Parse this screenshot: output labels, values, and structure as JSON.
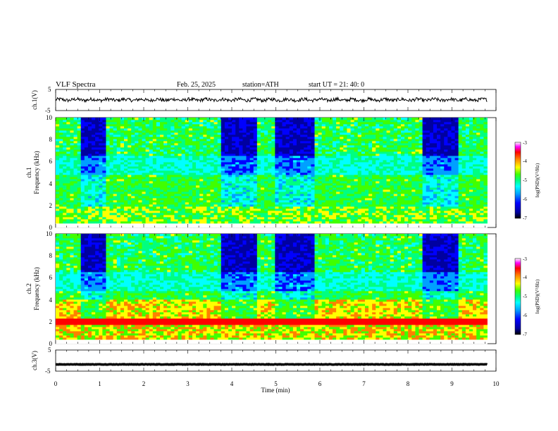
{
  "header": {
    "title": "VLF  Spectra",
    "date": "Feb. 25, 2025",
    "station": "station=ATH",
    "start": "start  UT  =    21: 40: 0"
  },
  "chart_data": [
    {
      "type": "line",
      "name": "ch1-waveform",
      "ylabel": "ch.1(V)",
      "xlim": [
        0,
        9.8
      ],
      "ylim": [
        -5,
        5
      ],
      "yticks": [
        "5",
        "-5"
      ],
      "approx_level": 0.1
    },
    {
      "type": "heatmap",
      "name": "ch1-spectrogram",
      "ylabel": "ch.1\nFrequency  (kHz)",
      "ylim": [
        0,
        10
      ],
      "yticks": [
        "10",
        "8",
        "6",
        "4",
        "2",
        "0"
      ],
      "colorbar": {
        "label": "log(PSD)(V²/Hz)",
        "range": [
          -7,
          -3
        ],
        "ticks": [
          "-3",
          "-4",
          "-5",
          "-6",
          "-7"
        ]
      },
      "quiet_intervals_min": [
        [
          0.55,
          1.15
        ],
        [
          3.75,
          4.55
        ],
        [
          4.95,
          5.85
        ],
        [
          8.35,
          9.15
        ]
      ]
    },
    {
      "type": "heatmap",
      "name": "ch2-spectrogram",
      "ylabel": "ch.2\nFrequency  (kHz)",
      "ylim": [
        0,
        10
      ],
      "yticks": [
        "10",
        "8",
        "6",
        "4",
        "2",
        "0"
      ],
      "colorbar": {
        "label": "log(PSD)(V²/Hz)",
        "range": [
          -7,
          -3
        ],
        "ticks": [
          "-3",
          "-4",
          "-5",
          "-6",
          "-7"
        ]
      },
      "quiet_intervals_min": [
        [
          0.55,
          1.15
        ],
        [
          3.75,
          4.55
        ],
        [
          4.95,
          5.85
        ],
        [
          8.35,
          9.15
        ]
      ]
    },
    {
      "type": "line",
      "name": "ch3-waveform",
      "ylabel": "ch.3(V)",
      "xlim": [
        0,
        9.8
      ],
      "ylim": [
        -5,
        5
      ],
      "yticks": [
        "5",
        "-5"
      ],
      "approx_level": -1.8
    }
  ],
  "xaxis": {
    "label": "Time  (min)",
    "range": [
      0,
      10
    ],
    "ticks": [
      "0",
      "1",
      "2",
      "3",
      "4",
      "5",
      "6",
      "7",
      "8",
      "9",
      "10"
    ]
  },
  "colors": {
    "trace": "#000000",
    "colormap": [
      "#000000",
      "#0000a0",
      "#0000ff",
      "#00a0ff",
      "#00ffff",
      "#00ff80",
      "#40ff00",
      "#ffff00",
      "#ff8000",
      "#ff0000",
      "#ff00ff",
      "#ffffff"
    ]
  }
}
